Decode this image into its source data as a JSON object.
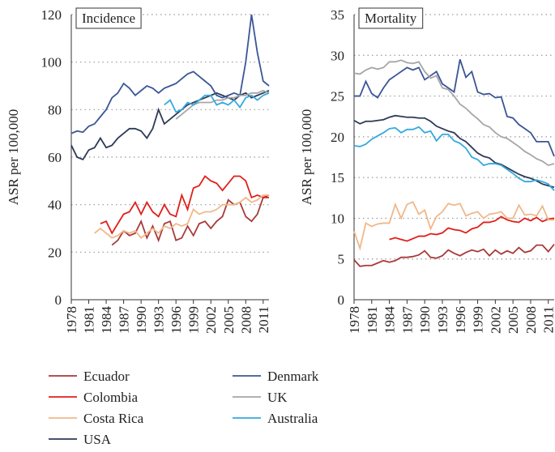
{
  "chart_data": [
    {
      "type": "line",
      "title": "Incidence",
      "y_label": "ASR per 100,000",
      "x": [
        1978,
        1979,
        1980,
        1981,
        1982,
        1983,
        1984,
        1985,
        1986,
        1987,
        1988,
        1989,
        1990,
        1991,
        1992,
        1993,
        1994,
        1995,
        1996,
        1997,
        1998,
        1999,
        2000,
        2001,
        2002,
        2003,
        2004,
        2005,
        2006,
        2007,
        2008,
        2009,
        2010,
        2011,
        2012
      ],
      "xlim": [
        1978,
        2012
      ],
      "xticks": [
        1978,
        1981,
        1984,
        1987,
        1990,
        1993,
        1996,
        1999,
        2002,
        2005,
        2008,
        2011
      ],
      "ylim": [
        0,
        120
      ],
      "yticks": [
        0,
        20,
        40,
        60,
        80,
        100,
        120
      ],
      "grid": true,
      "series": [
        {
          "name": "Ecuador",
          "color": "#a83a3a",
          "values": [
            null,
            null,
            null,
            null,
            null,
            null,
            null,
            23,
            25,
            29,
            27,
            28,
            33,
            26,
            31,
            25,
            32,
            33,
            25,
            26,
            31,
            27,
            32,
            33,
            30,
            33,
            35,
            42,
            40,
            41,
            35,
            33,
            36,
            43,
            43
          ]
        },
        {
          "name": "Colombia",
          "color": "#e0201b",
          "values": [
            null,
            null,
            null,
            null,
            null,
            32,
            33,
            28,
            32,
            36,
            37,
            41,
            36,
            41,
            37,
            35,
            40,
            36,
            35,
            44,
            38,
            47,
            48,
            52,
            50,
            49,
            46,
            49,
            52,
            52,
            50,
            43,
            44,
            43,
            44
          ]
        },
        {
          "name": "Costa Rica",
          "color": "#f0b88a",
          "values": [
            null,
            null,
            null,
            null,
            28,
            30,
            28,
            26,
            27,
            29,
            28,
            29,
            26,
            28,
            30,
            28,
            31,
            30,
            32,
            31,
            32,
            38,
            36,
            37,
            37,
            38,
            40,
            40,
            40,
            41,
            43,
            41,
            42,
            44,
            44
          ]
        },
        {
          "name": "USA",
          "color": "#2d3a56",
          "values": [
            65,
            60,
            59,
            63,
            64,
            68,
            64,
            65,
            68,
            70,
            72,
            72,
            71,
            68,
            72,
            80,
            74,
            76,
            78,
            80,
            82,
            83,
            84,
            85,
            86,
            87,
            86,
            85,
            84,
            86,
            87,
            85,
            86,
            87,
            88
          ]
        },
        {
          "name": "Denmark",
          "color": "#3b5696",
          "values": [
            70,
            71,
            70.5,
            73,
            74,
            77,
            80,
            85,
            87,
            91,
            89,
            86,
            88,
            90,
            89,
            87,
            89,
            90,
            91,
            93,
            95,
            96,
            94,
            92,
            90,
            86,
            85,
            86,
            87,
            86,
            100,
            120,
            104,
            92,
            90
          ]
        },
        {
          "name": "UK",
          "color": "#a6a6a6",
          "values": [
            null,
            null,
            null,
            null,
            null,
            null,
            null,
            null,
            null,
            null,
            null,
            null,
            null,
            null,
            null,
            null,
            null,
            null,
            76,
            78,
            80,
            82,
            83,
            83,
            83,
            84,
            84,
            85,
            85,
            86,
            86,
            87,
            87,
            88,
            87
          ]
        },
        {
          "name": "Australia",
          "color": "#35a9df",
          "values": [
            null,
            null,
            null,
            null,
            null,
            null,
            null,
            null,
            null,
            null,
            null,
            null,
            null,
            null,
            null,
            null,
            82,
            84,
            79,
            80,
            83,
            82,
            84,
            86,
            86,
            82,
            83,
            82,
            84,
            81,
            85,
            86,
            84,
            86,
            87
          ]
        }
      ]
    },
    {
      "type": "line",
      "title": "Mortality",
      "y_label": "ASR per 100,000",
      "x": [
        1978,
        1979,
        1980,
        1981,
        1982,
        1983,
        1984,
        1985,
        1986,
        1987,
        1988,
        1989,
        1990,
        1991,
        1992,
        1993,
        1994,
        1995,
        1996,
        1997,
        1998,
        1999,
        2000,
        2001,
        2002,
        2003,
        2004,
        2005,
        2006,
        2007,
        2008,
        2009,
        2010,
        2011,
        2012
      ],
      "xlim": [
        1978,
        2012
      ],
      "xticks": [
        1978,
        1981,
        1984,
        1987,
        1990,
        1993,
        1996,
        1999,
        2002,
        2005,
        2008,
        2011
      ],
      "ylim": [
        0,
        35
      ],
      "yticks": [
        0,
        5,
        10,
        15,
        20,
        25,
        30,
        35
      ],
      "grid": true,
      "series": [
        {
          "color": "#a83a3a",
          "values": [
            4.9,
            4.1,
            4.2,
            4.2,
            4.5,
            4.8,
            4.6,
            4.8,
            5.2,
            5.2,
            5.3,
            5.5,
            6.0,
            5.2,
            5.1,
            5.4,
            6.1,
            5.7,
            5.4,
            5.8,
            6.1,
            5.9,
            6.2,
            5.4,
            6.1,
            5.6,
            6.0,
            5.7,
            6.4,
            5.8,
            6.0,
            6.7,
            6.7,
            5.9,
            6.8
          ]
        },
        {
          "color": "#e0201b",
          "values": [
            null,
            null,
            null,
            null,
            null,
            null,
            7.4,
            7.6,
            7.4,
            7.2,
            7.5,
            7.8,
            7.8,
            8.1,
            8.0,
            8.2,
            8.8,
            8.6,
            8.5,
            8.2,
            8.7,
            8.9,
            9.5,
            9.5,
            9.7,
            10.2,
            9.8,
            9.6,
            9.5,
            10.0,
            9.7,
            10.1,
            9.6,
            9.9,
            10.0
          ]
        },
        {
          "color": "#f0b88a",
          "values": [
            8.4,
            6.3,
            9.4,
            9.0,
            9.3,
            9.4,
            9.4,
            11.7,
            10.0,
            11.7,
            12,
            10.5,
            11,
            8.7,
            10.2,
            10.8,
            11.8,
            11.6,
            11.8,
            10.3,
            10.6,
            10.8,
            10,
            10.5,
            10.6,
            10.8,
            10,
            10,
            11.6,
            10.4,
            10.5,
            10.3,
            11.5,
            9.8,
            9.8
          ]
        },
        {
          "color": "#2d3a56",
          "values": [
            22,
            21.6,
            21.9,
            21.9,
            22,
            22.1,
            22.4,
            22.6,
            22.5,
            22.4,
            22.4,
            22.3,
            22.3,
            21.9,
            21.3,
            21,
            20.7,
            20.5,
            19.8,
            19.4,
            18.7,
            18,
            17.6,
            17.4,
            16.8,
            16.6,
            16.2,
            15.8,
            15.4,
            15.1,
            14.9,
            14.6,
            14.2,
            14,
            13.8
          ]
        },
        {
          "color": "#3b5696",
          "values": [
            25,
            25,
            26.8,
            25.3,
            24.8,
            26,
            27,
            27.5,
            28,
            28.5,
            28.2,
            28.5,
            27,
            27.5,
            28,
            26.5,
            26,
            25.5,
            29.5,
            27.3,
            28,
            25.5,
            25.2,
            25.3,
            24.8,
            24.9,
            22.5,
            22.3,
            21.5,
            21,
            20.5,
            19.4,
            19.4,
            19.4,
            17.6
          ]
        },
        {
          "color": "#a6a6a6",
          "values": [
            27.8,
            27.7,
            28.2,
            28.5,
            28.3,
            28.5,
            29.2,
            29.2,
            29.4,
            29.1,
            29.0,
            29.2,
            28,
            27.2,
            27.5,
            26,
            25.8,
            25,
            24,
            23.5,
            22.8,
            22.2,
            21.5,
            21.2,
            20.5,
            20,
            19.8,
            19.3,
            18.8,
            18.2,
            17.8,
            17.3,
            17.0,
            16.5,
            16.7
          ]
        },
        {
          "color": "#35a9df",
          "values": [
            18.9,
            18.8,
            19.1,
            19.7,
            20.1,
            20.5,
            21,
            21.1,
            20.5,
            20.9,
            20.9,
            21.2,
            20.5,
            20.7,
            19.5,
            20.3,
            20.3,
            19.5,
            19.2,
            18.6,
            17.5,
            17.2,
            16.5,
            16.7,
            16.7,
            16.5,
            16,
            15.5,
            14.9,
            14.5,
            14.5,
            14.7,
            14.5,
            14.2,
            13.4
          ]
        }
      ]
    }
  ]
}
